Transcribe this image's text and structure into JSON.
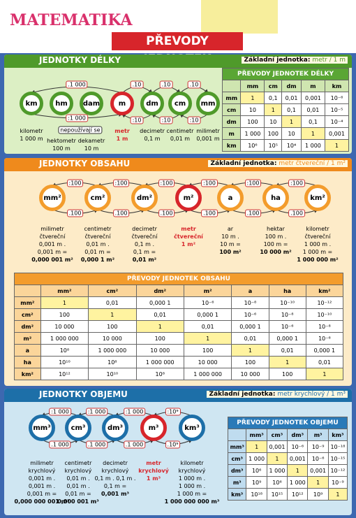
{
  "header": {
    "title": "MATEMATIKA",
    "subtitle": "PŘEVODY JEDNOTEK"
  },
  "sections": [
    {
      "title": "JEDNOTKY DÉLKY",
      "base_label": "Základní jednotka:",
      "base_value": "metr / 1 m",
      "units": [
        "km",
        "hm",
        "dam",
        "m",
        "dm",
        "cm",
        "mm"
      ],
      "top_arrows": [
        ".1 000",
        ".10",
        ".10",
        ".10"
      ],
      "bottom_arrows": [
        ":1 000",
        ":10",
        ":10",
        ":10"
      ],
      "note": "nepoužívají se",
      "descriptions": [
        [
          "kilometr",
          "1 000 m"
        ],
        [
          "hektometr",
          "100 m"
        ],
        [
          "dekametr",
          "10 m"
        ],
        [
          "metr",
          "1 m"
        ],
        [
          "decimetr",
          "0,1 m"
        ],
        [
          "centimetr",
          "0,01 m"
        ],
        [
          "milimetr",
          "0,001 m"
        ]
      ],
      "table": {
        "title": "PŘEVODY JEDNOTEK DÉLKY",
        "columns": [
          "mm",
          "cm",
          "dm",
          "m",
          "km"
        ],
        "rows": [
          {
            "label": "mm",
            "values": [
              "1",
              "0,1",
              "0,01",
              "0,001",
              "10⁻⁶"
            ]
          },
          {
            "label": "cm",
            "values": [
              "10",
              "1",
              "0,1",
              "0,01",
              "10⁻⁵"
            ]
          },
          {
            "label": "dm",
            "values": [
              "100",
              "10",
              "1",
              "0,1",
              "10⁻⁴"
            ]
          },
          {
            "label": "m",
            "values": [
              "1 000",
              "100",
              "10",
              "1",
              "0,001"
            ]
          },
          {
            "label": "km",
            "values": [
              "10⁶",
              "10⁵",
              "10⁴",
              "1 000",
              "1"
            ]
          }
        ]
      }
    },
    {
      "title": "JEDNOTKY OBSAHU",
      "base_label": "Základní jednotka:",
      "base_value": "metr čtvereční / 1 m²",
      "units": [
        "mm²",
        "cm²",
        "dm²",
        "m²",
        "a",
        "ha",
        "km²"
      ],
      "top_arrows": [
        ":100",
        ":100",
        ":100",
        ":100",
        ":100",
        ":100"
      ],
      "bottom_arrows": [
        ".100",
        ".100",
        ".100",
        ".100",
        ".100",
        ".100"
      ],
      "descriptions": [
        [
          "milimetr",
          "čtvereční",
          "0,001 m .",
          "0,001 m =",
          "0,000 001 m²"
        ],
        [
          "centimetr",
          "čtvereční",
          "0,01 m .",
          "0,01 m =",
          "0,000 1 m²"
        ],
        [
          "decimetr",
          "čtvereční",
          "0,1 m .",
          "0,1 m =",
          "0,01 m²"
        ],
        [
          "metr",
          "čtvereční",
          "1 m²"
        ],
        [
          "ar",
          "10 m .",
          "10 m =",
          "100 m²"
        ],
        [
          "hektar",
          "100 m .",
          "100 m =",
          "10 000 m²"
        ],
        [
          "kilometr",
          "čtvereční",
          "1 000 m .",
          "1 000 m =",
          "1 000 000 m²"
        ]
      ],
      "table": {
        "title": "PŘEVODY JEDNOTEK OBSAHU",
        "columns": [
          "mm²",
          "cm²",
          "dm²",
          "m²",
          "a",
          "ha",
          "km²"
        ],
        "rows": [
          {
            "label": "mm²",
            "values": [
              "1",
              "0,01",
              "0,000 1",
              "10⁻⁶",
              "10⁻⁸",
              "10⁻¹⁰",
              "10⁻¹²"
            ]
          },
          {
            "label": "cm²",
            "values": [
              "100",
              "1",
              "0,01",
              "0,000 1",
              "10⁻⁶",
              "10⁻⁸",
              "10⁻¹⁰"
            ]
          },
          {
            "label": "dm²",
            "values": [
              "10 000",
              "100",
              "1",
              "0,01",
              "0,000 1",
              "10⁻⁶",
              "10⁻⁸"
            ]
          },
          {
            "label": "m²",
            "values": [
              "1 000 000",
              "10 000",
              "100",
              "1",
              "0,01",
              "0,000 1",
              "10⁻⁶"
            ]
          },
          {
            "label": "a",
            "values": [
              "10⁸",
              "1 000 000",
              "10 000",
              "100",
              "1",
              "0,01",
              "0,000 1"
            ]
          },
          {
            "label": "ha",
            "values": [
              "10¹⁰",
              "10⁸",
              "1 000 000",
              "10 000",
              "100",
              "1",
              "0,01"
            ]
          },
          {
            "label": "km²",
            "values": [
              "10¹²",
              "10¹⁰",
              "10⁸",
              "1 000 000",
              "10 000",
              "100",
              "1"
            ]
          }
        ]
      }
    },
    {
      "title": "JEDNOTKY OBJEMU",
      "base_label": "Základní jednotka:",
      "base_value": "metr krychlový / 1 m³",
      "units": [
        "mm³",
        "cm³",
        "dm³",
        "m³",
        "km³"
      ],
      "top_arrows": [
        ":1 000",
        ":1 000",
        ":1 000",
        ":10⁹"
      ],
      "bottom_arrows": [
        ".1 000",
        ".1 000",
        ".1 000",
        ".10⁹"
      ],
      "descriptions": [
        [
          "milimetr",
          "krychlový",
          "0,001 m .",
          "0,001 m .",
          "0,001 m =",
          "0,000 000 001 m³"
        ],
        [
          "centimetr",
          "krychlový",
          "0,01 m .",
          "0,01 m .",
          "0,01 m =",
          "0,000 001 m³"
        ],
        [
          "decimetr",
          "krychlový",
          "0,1 m . 0,1 m .",
          "0,1 m =",
          "0,001 m³"
        ],
        [
          "metr",
          "krychlový",
          "1 m³"
        ],
        [
          "kilometr",
          "krychlový",
          "1 000 m .",
          "1 000 m .",
          "1 000 m =",
          "1 000 000 000 m³"
        ]
      ],
      "table": {
        "title": "PŘEVODY JEDNOTEK OBJEMU",
        "columns": [
          "mm³",
          "cm³",
          "dm³",
          "m³",
          "km³"
        ],
        "rows": [
          {
            "label": "mm³",
            "values": [
              "1",
              "0,001",
              "10⁻⁶",
              "10⁻⁹",
              "10⁻¹⁸"
            ]
          },
          {
            "label": "cm³",
            "values": [
              "1 000",
              "1",
              "0,001",
              "10⁻⁶",
              "10⁻¹⁵"
            ]
          },
          {
            "label": "dm³",
            "values": [
              "10⁶",
              "1 000",
              "1",
              "0,001",
              "10⁻¹²"
            ]
          },
          {
            "label": "m³",
            "values": [
              "10⁹",
              "10⁶",
              "1 000",
              "1",
              "10⁻⁹"
            ]
          },
          {
            "label": "km³",
            "values": [
              "10¹⁸",
              "10¹⁵",
              "10¹²",
              "10⁹",
              "1"
            ]
          }
        ]
      }
    }
  ]
}
